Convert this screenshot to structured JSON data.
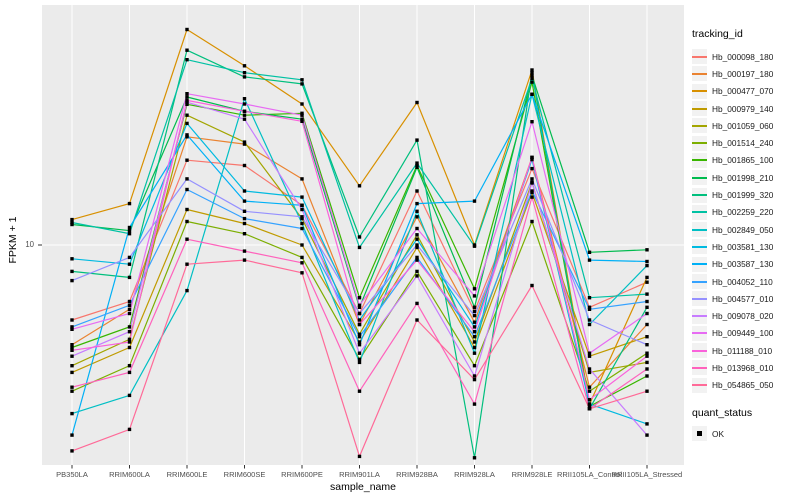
{
  "figure": {
    "y_axis_title": "FPKM + 1",
    "x_axis_title": "sample_name",
    "y_tick_label": "10",
    "legend_title": "tracking_id",
    "quant_legend_title": "quant_status",
    "quant_legend_item": "OK"
  },
  "colors": {
    "panel_bg": "#EBEBEB",
    "grid": "#FFFFFF",
    "point": "#000000",
    "legend_key_bg": "#F2F2F2",
    "tick_text": "#4d4d4d",
    "axis_tick": "#333333"
  },
  "chart_data": {
    "type": "line",
    "title": "",
    "xlabel": "sample_name",
    "ylabel": "FPKM + 1",
    "y_scale": "log10",
    "y_ticks": [
      10
    ],
    "ylim": [
      1.4,
      75
    ],
    "grid": "major",
    "legend_position": "right",
    "point_marker": "black-square",
    "categories": [
      "PB350LA",
      "RRIM600LA",
      "RRIM600LE",
      "RRIM600SE",
      "RRIM600PE",
      "RRIM901LA",
      "RRIM928BA",
      "RRIM928LA",
      "RRIM928LE",
      "RRII105LA_Control",
      "RRII105LA_Stressed"
    ],
    "series": [
      {
        "name": "Hb_000098_180",
        "color": "#F8766D",
        "values": [
          5.3,
          6.2,
          20.5,
          19.6,
          14.0,
          5.6,
          15.8,
          5.7,
          19.1,
          5.9,
          7.3
        ]
      },
      {
        "name": "Hb_000197_180",
        "color": "#EA8331",
        "values": [
          4.3,
          5.8,
          25.0,
          23.5,
          17.5,
          5.1,
          12.7,
          5.2,
          21.0,
          3.0,
          5.1
        ]
      },
      {
        "name": "Hb_000477_070",
        "color": "#D89000",
        "values": [
          12.4,
          14.2,
          62.0,
          45.6,
          33.0,
          16.5,
          33.4,
          10.0,
          44.0,
          2.6,
          7.6
        ]
      },
      {
        "name": "Hb_000979_140",
        "color": "#C09B00",
        "values": [
          3.4,
          4.2,
          13.5,
          12.0,
          10.0,
          4.4,
          9.8,
          4.2,
          15.6,
          3.9,
          4.6
        ]
      },
      {
        "name": "Hb_001059_060",
        "color": "#A3A500",
        "values": [
          3.6,
          4.5,
          30.0,
          23.9,
          12.5,
          4.7,
          10.9,
          4.4,
          17.0,
          3.4,
          3.7
        ]
      },
      {
        "name": "Hb_001514_240",
        "color": "#7CAE00",
        "values": [
          2.9,
          3.6,
          12.2,
          11.0,
          9.0,
          3.8,
          8.0,
          3.6,
          12.2,
          2.9,
          4.0
        ]
      },
      {
        "name": "Hb_001865_100",
        "color": "#39B600",
        "values": [
          4.2,
          5.0,
          32.9,
          30.0,
          30.5,
          6.4,
          19.6,
          6.9,
          39.7,
          2.55,
          3.3
        ]
      },
      {
        "name": "Hb_001998_210",
        "color": "#00BB4E",
        "values": [
          11.9,
          11.3,
          35.0,
          31.0,
          29.0,
          5.9,
          19.3,
          5.9,
          42.0,
          9.4,
          9.6
        ]
      },
      {
        "name": "Hb_001999_320",
        "color": "#00BF7D",
        "values": [
          8.0,
          7.6,
          52.0,
          41.5,
          39.1,
          10.7,
          24.3,
          1.65,
          43.0,
          2.5,
          5.9
        ]
      },
      {
        "name": "Hb_002259_220",
        "color": "#00C1A3",
        "values": [
          12.1,
          11.0,
          48.0,
          43.0,
          40.5,
          9.8,
          20.0,
          9.9,
          41.0,
          6.4,
          6.6
        ]
      },
      {
        "name": "Hb_002849_050",
        "color": "#00BFC4",
        "values": [
          2.4,
          2.8,
          6.8,
          34.5,
          12.0,
          3.7,
          13.3,
          4.0,
          35.8,
          5.1,
          8.4
        ]
      },
      {
        "name": "Hb_003581_130",
        "color": "#00BAE0",
        "values": [
          8.9,
          8.5,
          28.0,
          15.8,
          15.0,
          5.3,
          10.5,
          5.0,
          20.6,
          2.6,
          2.2
        ]
      },
      {
        "name": "Hb_003587_130",
        "color": "#00B0F6",
        "values": [
          2.0,
          11.6,
          25.4,
          14.5,
          14.0,
          4.3,
          14.2,
          14.5,
          35.8,
          8.8,
          8.7
        ]
      },
      {
        "name": "Hb_004052_110",
        "color": "#35A2FF",
        "values": [
          5.0,
          6.0,
          16.0,
          12.5,
          11.5,
          4.6,
          9.0,
          4.6,
          15.8,
          5.8,
          6.2
        ]
      },
      {
        "name": "Hb_004577_010",
        "color": "#9590FF",
        "values": [
          7.4,
          9.0,
          17.5,
          13.3,
          12.7,
          5.6,
          10.0,
          5.5,
          17.5,
          5.3,
          4.3
        ]
      },
      {
        "name": "Hb_009078_020",
        "color": "#C77CFF",
        "values": [
          3.9,
          4.8,
          33.5,
          29.0,
          13.5,
          4.0,
          7.7,
          3.3,
          16.9,
          3.5,
          2.0
        ]
      },
      {
        "name": "Hb_009449_100",
        "color": "#E76BF3",
        "values": [
          4.9,
          5.6,
          36.0,
          33.0,
          30.0,
          6.0,
          11.5,
          6.5,
          28.4,
          4.0,
          5.6
        ]
      },
      {
        "name": "Hb_011188_010",
        "color": "#FA62DB",
        "values": [
          4.1,
          4.4,
          34.0,
          31.0,
          28.5,
          5.1,
          8.8,
          4.8,
          21.0,
          2.7,
          3.9
        ]
      },
      {
        "name": "Hb_013968_010",
        "color": "#FF62BC",
        "values": [
          3.0,
          3.4,
          10.5,
          9.5,
          8.6,
          2.9,
          6.1,
          2.6,
          15.0,
          2.5,
          3.5
        ]
      },
      {
        "name": "Hb_054865_050",
        "color": "#FF6A98",
        "values": [
          1.75,
          2.1,
          8.5,
          8.8,
          7.9,
          1.67,
          5.3,
          3.2,
          7.1,
          2.5,
          2.9
        ]
      }
    ]
  }
}
